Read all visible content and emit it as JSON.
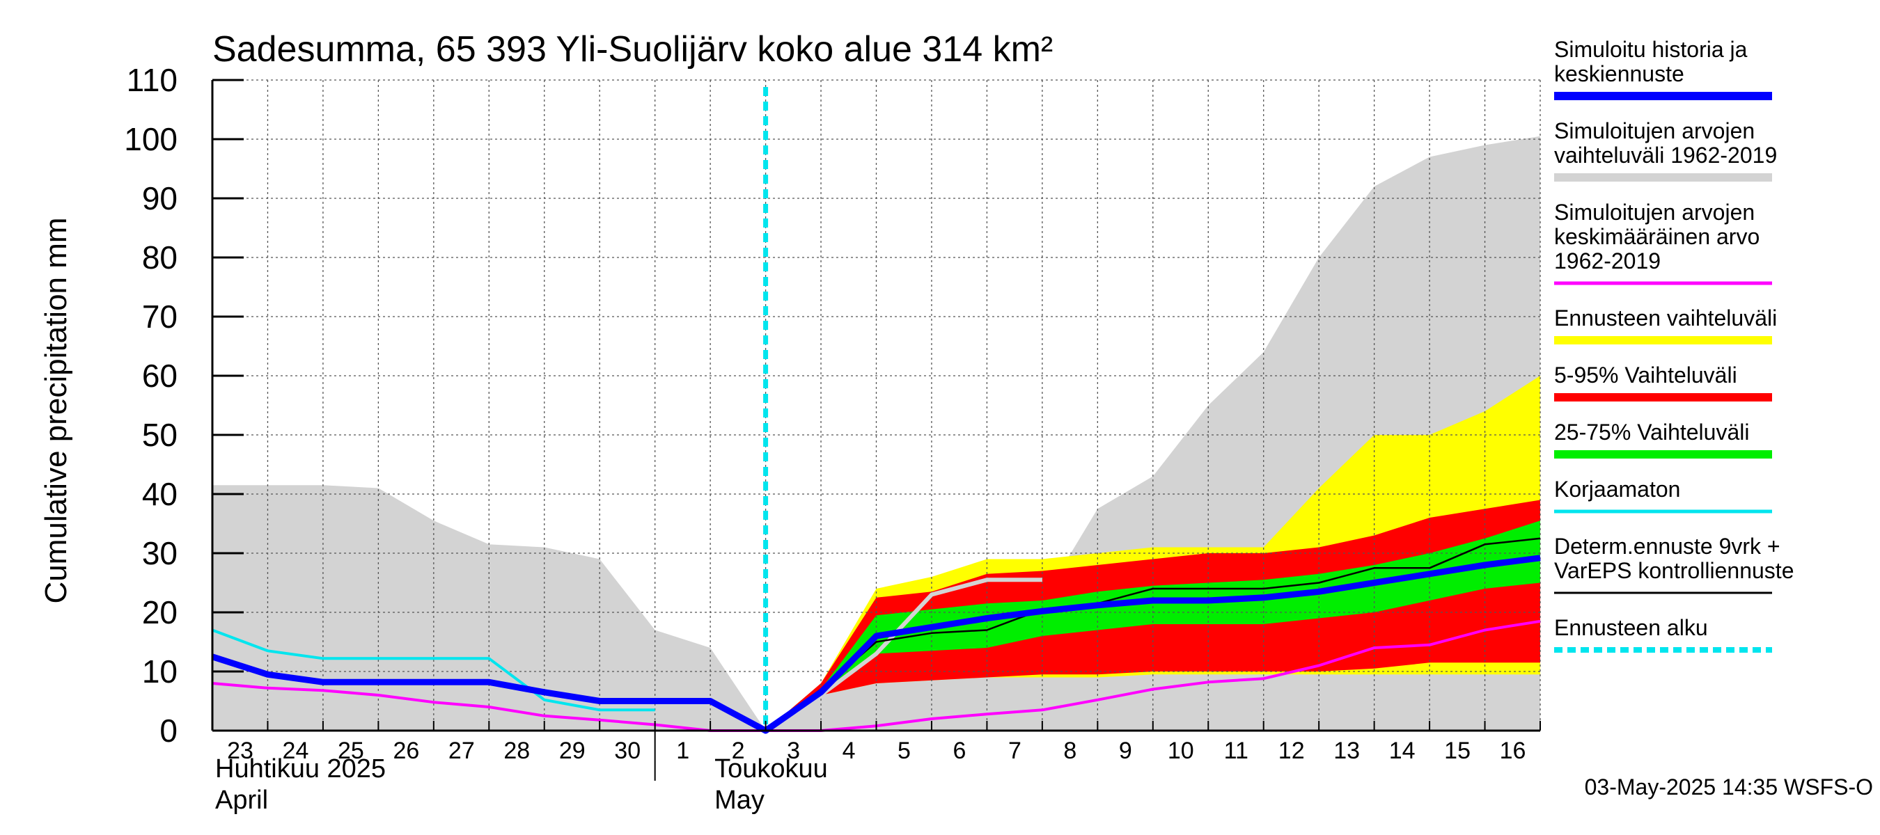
{
  "chart_data": {
    "type": "area",
    "title": "Sadesumma, 65 393 Yli-Suolijärv koko alue 314 km²",
    "ylabel": "Cumulative precipitation   mm",
    "xlabel": "",
    "ylim": [
      0,
      110
    ],
    "yticks": [
      0,
      10,
      20,
      30,
      40,
      50,
      60,
      70,
      80,
      90,
      100,
      110
    ],
    "grid": true,
    "legend_placement": "right",
    "x_day_labels": [
      "23",
      "24",
      "25",
      "26",
      "27",
      "28",
      "29",
      "30",
      "1",
      "2",
      "3",
      "4",
      "5",
      "6",
      "7",
      "8",
      "9",
      "10",
      "11",
      "12",
      "13",
      "14",
      "15",
      "16"
    ],
    "month_labels": {
      "april_fi": "Huhtikuu  2025",
      "april_en": "April",
      "may_fi": "Toukokuu",
      "may_en": "May"
    },
    "forecast_start": "2025-05-03",
    "timestamp": "03-May-2025 14:35 WSFS-O",
    "dates_hist": [
      "2025-04-23",
      "2025-04-24",
      "2025-04-25",
      "2025-04-26",
      "2025-04-27",
      "2025-04-28",
      "2025-04-29",
      "2025-04-30",
      "2025-05-01",
      "2025-05-02",
      "2025-05-03"
    ],
    "dates_fc": [
      "2025-05-03",
      "2025-05-04",
      "2025-05-05",
      "2025-05-06",
      "2025-05-07",
      "2025-05-08",
      "2025-05-09",
      "2025-05-10",
      "2025-05-11",
      "2025-05-12",
      "2025-05-13",
      "2025-05-14",
      "2025-05-15",
      "2025-05-16",
      "2025-05-17"
    ],
    "dates_all": [
      "2025-04-23",
      "2025-04-24",
      "2025-04-25",
      "2025-04-26",
      "2025-04-27",
      "2025-04-28",
      "2025-04-29",
      "2025-04-30",
      "2025-05-01",
      "2025-05-02",
      "2025-05-03",
      "2025-05-04",
      "2025-05-05",
      "2025-05-06",
      "2025-05-07",
      "2025-05-08",
      "2025-05-09",
      "2025-05-10",
      "2025-05-11",
      "2025-05-12",
      "2025-05-13",
      "2025-05-14",
      "2025-05-15",
      "2025-05-16",
      "2025-05-17"
    ],
    "series": [
      {
        "name": "Simuloitujen arvojen vaihteluväli 1962-2019",
        "color": "#d3d3d3",
        "kind": "band",
        "x": "dates_all",
        "upper": [
          41.5,
          41.5,
          41.5,
          41,
          35.5,
          31.5,
          31,
          29,
          17,
          14,
          0,
          6,
          10,
          14,
          17,
          22,
          37.5,
          43,
          55,
          64,
          80,
          92,
          97,
          99,
          100.5
        ],
        "lower": [
          0,
          0,
          0,
          0,
          0,
          0,
          0,
          0,
          0,
          0,
          0,
          0,
          0,
          0,
          0,
          0,
          0,
          0,
          0,
          0,
          0,
          0,
          0,
          0,
          0
        ]
      },
      {
        "name": "Ennusteen vaihteluväli",
        "color": "#ffff00",
        "kind": "band",
        "x": "dates_fc",
        "upper": [
          0,
          8,
          24,
          26,
          29,
          29,
          30,
          31,
          31,
          31,
          41,
          50,
          50,
          54,
          60
        ],
        "lower": [
          0,
          6,
          8,
          8.5,
          9,
          9,
          9,
          9.5,
          9.5,
          9.5,
          9.5,
          9.5,
          9.5,
          9.5,
          9.5
        ]
      },
      {
        "name": "5-95% Vaihteluväli",
        "color": "#ff0000",
        "kind": "band",
        "x": "dates_fc",
        "upper": [
          0,
          8,
          22.5,
          23.5,
          26.5,
          27,
          28,
          29,
          30,
          30,
          31,
          33,
          36,
          37.5,
          39
        ],
        "lower": [
          0,
          6,
          8,
          8.5,
          9,
          9.5,
          9.5,
          10,
          10,
          10,
          10,
          10.5,
          11.5,
          11.5,
          11.5
        ]
      },
      {
        "name": "25-75% Vaihteluväli",
        "color": "#00ee00",
        "kind": "band",
        "x": "dates_fc",
        "upper": [
          0,
          7,
          19.5,
          20.5,
          21.5,
          22,
          23.5,
          24.5,
          25,
          25.5,
          26.5,
          28,
          30,
          32.5,
          35.5
        ],
        "lower": [
          0,
          6.5,
          13,
          13.5,
          14,
          16,
          17,
          18,
          18,
          18,
          19,
          20,
          22,
          24,
          25
        ]
      },
      {
        "name": "Simuloitujen arvojen keskimääräinen arvo 1962-2019",
        "color": "#ff00ff",
        "kind": "line",
        "x": "dates_all",
        "values": [
          8,
          7.2,
          6.8,
          6,
          4.8,
          4,
          2.5,
          1.8,
          1,
          0,
          0,
          0,
          0.8,
          2,
          2.8,
          3.5,
          5.2,
          7,
          8.2,
          8.8,
          11,
          14,
          14.5,
          17,
          18.5
        ]
      },
      {
        "name": "Korjaamaton",
        "color": "#00e5ee",
        "kind": "line",
        "x": "dates_hist",
        "values": [
          17,
          13.5,
          12.2,
          12.2,
          12.2,
          12.2,
          5.2,
          3.5,
          3.5,
          null,
          null
        ]
      },
      {
        "name": "Korjaamaton (ennuste)",
        "color": "#d3d3d3",
        "kind": "line",
        "x": "dates_fc",
        "values": [
          0,
          6,
          13,
          23,
          25.5,
          25.5,
          null,
          null,
          null,
          null,
          null,
          null,
          null,
          null,
          null
        ]
      },
      {
        "name": "Determ.ennuste 9vrk + VarEPS kontrolliennuste",
        "color": "#000000",
        "kind": "line",
        "x": "dates_fc",
        "values": [
          0,
          7,
          15,
          16.5,
          17,
          20.5,
          21.5,
          24,
          24,
          24,
          25,
          27.5,
          27.5,
          31.5,
          32.5
        ]
      },
      {
        "name": "Simuloitu historia ja keskiennuste",
        "color": "#0000ff",
        "kind": "line",
        "x": "dates_all",
        "values": [
          12.5,
          9.5,
          8.2,
          8.2,
          8.2,
          8.2,
          6.5,
          5,
          5,
          5,
          0,
          6.5,
          16,
          17.5,
          19,
          20.2,
          21.2,
          22,
          22,
          22.5,
          23.5,
          25,
          26.5,
          28,
          29.2
        ]
      }
    ]
  },
  "legend": [
    {
      "lines": [
        "Simuloitu historia ja",
        "keskiennuste"
      ],
      "color": "#0000ff",
      "style": "solid-thick"
    },
    {
      "lines": [
        "Simuloitujen arvojen",
        "vaihteluväli 1962-2019"
      ],
      "color": "#d3d3d3",
      "style": "solid-thick"
    },
    {
      "lines": [
        "Simuloitujen arvojen",
        "keskimääräinen arvo",
        "   1962-2019"
      ],
      "color": "#ff00ff",
      "style": "solid"
    },
    {
      "lines": [
        "Ennusteen vaihteluväli"
      ],
      "color": "#ffff00",
      "style": "solid-thick"
    },
    {
      "lines": [
        "5-95% Vaihteluväli"
      ],
      "color": "#ff0000",
      "style": "solid-thick"
    },
    {
      "lines": [
        "25-75% Vaihteluväli"
      ],
      "color": "#00ee00",
      "style": "solid-thick"
    },
    {
      "lines": [
        "Korjaamaton"
      ],
      "color": "#00e5ee",
      "style": "solid"
    },
    {
      "lines": [
        "Determ.ennuste 9vrk +",
        "VarEPS kontrolliennuste"
      ],
      "color": "#000000",
      "style": "solid-thin"
    },
    {
      "lines": [
        "Ennusteen alku"
      ],
      "color": "#00e5ee",
      "style": "dashed"
    }
  ]
}
